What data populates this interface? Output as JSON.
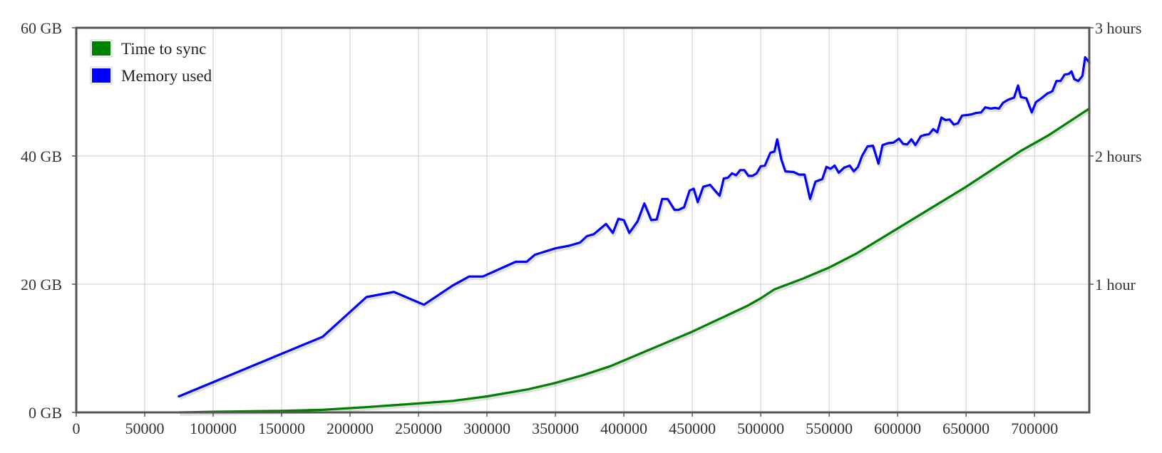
{
  "chart_data": {
    "type": "line",
    "title": "",
    "xlabel": "",
    "ylabel": "",
    "xlim": [
      0,
      740000
    ],
    "ylim": [
      0,
      60
    ],
    "y2lim": [
      0,
      3
    ],
    "grid": true,
    "legend_position": "top-left",
    "x_ticks": [
      {
        "value": 0,
        "label": "0"
      },
      {
        "value": 50000,
        "label": "50000"
      },
      {
        "value": 100000,
        "label": "100000"
      },
      {
        "value": 150000,
        "label": "150000"
      },
      {
        "value": 200000,
        "label": "200000"
      },
      {
        "value": 250000,
        "label": "250000"
      },
      {
        "value": 300000,
        "label": "300000"
      },
      {
        "value": 350000,
        "label": "350000"
      },
      {
        "value": 400000,
        "label": "400000"
      },
      {
        "value": 450000,
        "label": "450000"
      },
      {
        "value": 500000,
        "label": "500000"
      },
      {
        "value": 550000,
        "label": "550000"
      },
      {
        "value": 600000,
        "label": "600000"
      },
      {
        "value": 650000,
        "label": "650000"
      },
      {
        "value": 700000,
        "label": "700000"
      }
    ],
    "y_ticks": [
      {
        "value": 0,
        "label": "0 GB"
      },
      {
        "value": 20,
        "label": "20 GB"
      },
      {
        "value": 40,
        "label": "40 GB"
      },
      {
        "value": 60,
        "label": "60 GB"
      }
    ],
    "y2_ticks": [
      {
        "value": 1,
        "label": "1 hour"
      },
      {
        "value": 2,
        "label": "2 hours"
      },
      {
        "value": 3,
        "label": "3 hours"
      }
    ],
    "series": [
      {
        "name": "Time to sync",
        "color": "#008000",
        "axis": "right",
        "points": [
          [
            75000,
            0.0
          ],
          [
            100000,
            0.005
          ],
          [
            150000,
            0.012
          ],
          [
            180000,
            0.02
          ],
          [
            210000,
            0.04
          ],
          [
            230000,
            0.055
          ],
          [
            250000,
            0.07
          ],
          [
            275000,
            0.09
          ],
          [
            300000,
            0.125
          ],
          [
            330000,
            0.18
          ],
          [
            350000,
            0.23
          ],
          [
            370000,
            0.29
          ],
          [
            390000,
            0.36
          ],
          [
            410000,
            0.45
          ],
          [
            430000,
            0.54
          ],
          [
            450000,
            0.63
          ],
          [
            470000,
            0.73
          ],
          [
            490000,
            0.83
          ],
          [
            500000,
            0.89
          ],
          [
            510000,
            0.96
          ],
          [
            530000,
            1.04
          ],
          [
            550000,
            1.13
          ],
          [
            570000,
            1.24
          ],
          [
            590000,
            1.37
          ],
          [
            610000,
            1.5
          ],
          [
            630000,
            1.63
          ],
          [
            650000,
            1.76
          ],
          [
            670000,
            1.9
          ],
          [
            690000,
            2.04
          ],
          [
            710000,
            2.16
          ],
          [
            740000,
            2.37
          ]
        ]
      },
      {
        "name": "Memory used",
        "color": "#0000ff",
        "axis": "left",
        "points": [
          [
            75000,
            2.5
          ],
          [
            180000,
            11.8
          ],
          [
            212000,
            18.0
          ],
          [
            232000,
            18.8
          ],
          [
            254000,
            16.8
          ],
          [
            275000,
            19.8
          ],
          [
            287000,
            21.2
          ],
          [
            297000,
            21.2
          ],
          [
            321000,
            23.5
          ],
          [
            329000,
            23.5
          ],
          [
            335000,
            24.6
          ],
          [
            350000,
            25.6
          ],
          [
            360000,
            26.0
          ],
          [
            368000,
            26.5
          ],
          [
            373000,
            27.5
          ],
          [
            378000,
            27.8
          ],
          [
            387000,
            29.4
          ],
          [
            392000,
            28.0
          ],
          [
            396000,
            30.2
          ],
          [
            400000,
            30.0
          ],
          [
            404000,
            28.0
          ],
          [
            410000,
            29.8
          ],
          [
            415000,
            32.6
          ],
          [
            420000,
            30.0
          ],
          [
            424000,
            30.1
          ],
          [
            428000,
            33.3
          ],
          [
            432000,
            33.3
          ],
          [
            437000,
            31.6
          ],
          [
            440000,
            31.6
          ],
          [
            444000,
            32.0
          ],
          [
            448000,
            34.6
          ],
          [
            451000,
            34.9
          ],
          [
            454000,
            32.8
          ],
          [
            458000,
            35.2
          ],
          [
            463000,
            35.5
          ],
          [
            467000,
            34.5
          ],
          [
            470000,
            33.8
          ],
          [
            473000,
            36.5
          ],
          [
            476000,
            36.6
          ],
          [
            479000,
            37.3
          ],
          [
            482000,
            37.0
          ],
          [
            485000,
            37.8
          ],
          [
            488000,
            37.8
          ],
          [
            491000,
            36.9
          ],
          [
            494000,
            36.9
          ],
          [
            497000,
            37.3
          ],
          [
            500000,
            38.4
          ],
          [
            503000,
            38.5
          ],
          [
            507000,
            40.5
          ],
          [
            510000,
            40.7
          ],
          [
            512000,
            42.6
          ],
          [
            515000,
            39.5
          ],
          [
            518000,
            37.6
          ],
          [
            524000,
            37.5
          ],
          [
            528000,
            37.1
          ],
          [
            532000,
            37.1
          ],
          [
            536000,
            33.3
          ],
          [
            540000,
            36.0
          ],
          [
            545000,
            36.4
          ],
          [
            548000,
            38.3
          ],
          [
            551000,
            38.0
          ],
          [
            554000,
            38.5
          ],
          [
            557000,
            37.4
          ],
          [
            561000,
            38.2
          ],
          [
            565000,
            38.5
          ],
          [
            568000,
            37.6
          ],
          [
            571000,
            38.3
          ],
          [
            574000,
            40.0
          ],
          [
            578000,
            41.5
          ],
          [
            582000,
            41.6
          ],
          [
            586000,
            38.8
          ],
          [
            589000,
            41.7
          ],
          [
            593000,
            42.0
          ],
          [
            597000,
            42.1
          ],
          [
            601000,
            42.7
          ],
          [
            604000,
            41.9
          ],
          [
            607000,
            41.8
          ],
          [
            610000,
            42.6
          ],
          [
            613000,
            41.7
          ],
          [
            617000,
            43.1
          ],
          [
            620000,
            43.3
          ],
          [
            623000,
            43.4
          ],
          [
            626000,
            44.2
          ],
          [
            629000,
            43.7
          ],
          [
            632000,
            46.0
          ],
          [
            635000,
            45.6
          ],
          [
            638000,
            45.7
          ],
          [
            641000,
            44.9
          ],
          [
            644000,
            45.1
          ],
          [
            647000,
            46.3
          ],
          [
            651000,
            46.4
          ],
          [
            654000,
            46.5
          ],
          [
            657000,
            46.7
          ],
          [
            661000,
            46.8
          ],
          [
            664000,
            47.6
          ],
          [
            668000,
            47.4
          ],
          [
            671000,
            47.5
          ],
          [
            674000,
            47.4
          ],
          [
            677000,
            48.3
          ],
          [
            681000,
            48.8
          ],
          [
            685000,
            49.1
          ],
          [
            688000,
            51.0
          ],
          [
            690000,
            49.2
          ],
          [
            694000,
            49.0
          ],
          [
            698000,
            46.8
          ],
          [
            701000,
            48.4
          ],
          [
            705000,
            49.0
          ],
          [
            709000,
            49.7
          ],
          [
            713000,
            50.1
          ],
          [
            716000,
            51.7
          ],
          [
            719000,
            51.7
          ],
          [
            722000,
            52.7
          ],
          [
            725000,
            52.8
          ],
          [
            727000,
            53.2
          ],
          [
            729000,
            52.0
          ],
          [
            732000,
            51.7
          ],
          [
            735000,
            52.5
          ],
          [
            737000,
            55.4
          ],
          [
            740000,
            54.6
          ]
        ]
      }
    ]
  }
}
